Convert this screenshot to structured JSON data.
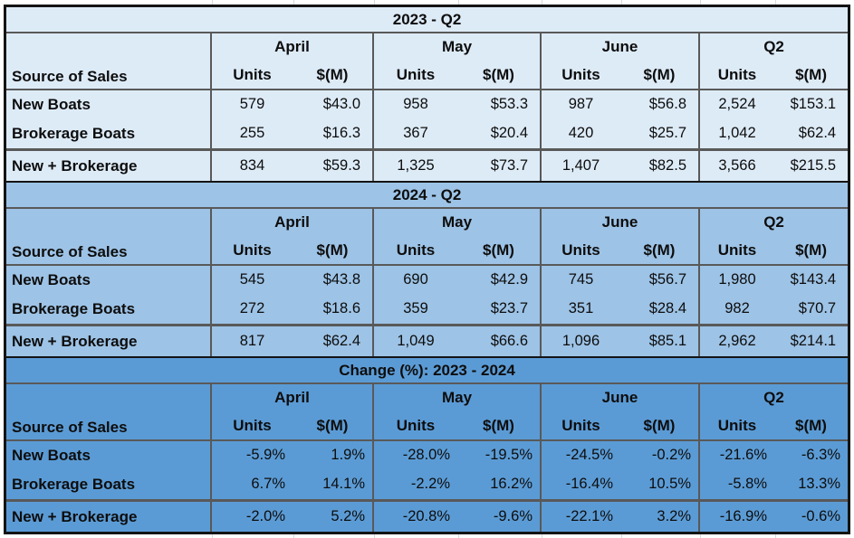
{
  "report": {
    "sections": [
      {
        "title": "2023 - Q2",
        "bg": "#DDEBF7",
        "corner_label": "Source of Sales",
        "groups": [
          "April",
          "May",
          "June",
          "Q2"
        ],
        "sub_headers": [
          "Units",
          "$(M)"
        ],
        "percent": false,
        "rows": [
          {
            "label": "New Boats",
            "values": [
              "579",
              "$43.0",
              "958",
              "$53.3",
              "987",
              "$56.8",
              "2,524",
              "$153.1"
            ]
          },
          {
            "label": "Brokerage Boats",
            "values": [
              "255",
              "$16.3",
              "367",
              "$20.4",
              "420",
              "$25.7",
              "1,042",
              "$62.4"
            ]
          }
        ],
        "total": {
          "label": "New + Brokerage",
          "values": [
            "834",
            "$59.3",
            "1,325",
            "$73.7",
            "1,407",
            "$82.5",
            "3,566",
            "$215.5"
          ]
        }
      },
      {
        "title": "2024 - Q2",
        "bg": "#9DC3E6",
        "corner_label": "Source of Sales",
        "groups": [
          "April",
          "May",
          "June",
          "Q2"
        ],
        "sub_headers": [
          "Units",
          "$(M)"
        ],
        "percent": false,
        "rows": [
          {
            "label": "New Boats",
            "values": [
              "545",
              "$43.8",
              "690",
              "$42.9",
              "745",
              "$56.7",
              "1,980",
              "$143.4"
            ]
          },
          {
            "label": "Brokerage Boats",
            "values": [
              "272",
              "$18.6",
              "359",
              "$23.7",
              "351",
              "$28.4",
              "982",
              "$70.7"
            ]
          }
        ],
        "total": {
          "label": "New + Brokerage",
          "values": [
            "817",
            "$62.4",
            "1,049",
            "$66.6",
            "1,096",
            "$85.1",
            "2,962",
            "$214.1"
          ]
        }
      },
      {
        "title": "Change (%): 2023 - 2024",
        "bg": "#5B9BD5",
        "corner_label": "Source of Sales",
        "groups": [
          "April",
          "May",
          "June",
          "Q2"
        ],
        "sub_headers": [
          "Units",
          "$(M)"
        ],
        "percent": true,
        "rows": [
          {
            "label": "New Boats",
            "values": [
              "-5.9%",
              "1.9%",
              "-28.0%",
              "-19.5%",
              "-24.5%",
              "-0.2%",
              "-21.6%",
              "-6.3%"
            ]
          },
          {
            "label": "Brokerage Boats",
            "values": [
              "6.7%",
              "14.1%",
              "-2.2%",
              "16.2%",
              "-16.4%",
              "10.5%",
              "-5.8%",
              "13.3%"
            ]
          }
        ],
        "total": {
          "label": "New + Brokerage",
          "values": [
            "-2.0%",
            "5.2%",
            "-20.8%",
            "-9.6%",
            "-22.1%",
            "3.2%",
            "-16.9%",
            "-0.6%"
          ]
        }
      }
    ]
  }
}
